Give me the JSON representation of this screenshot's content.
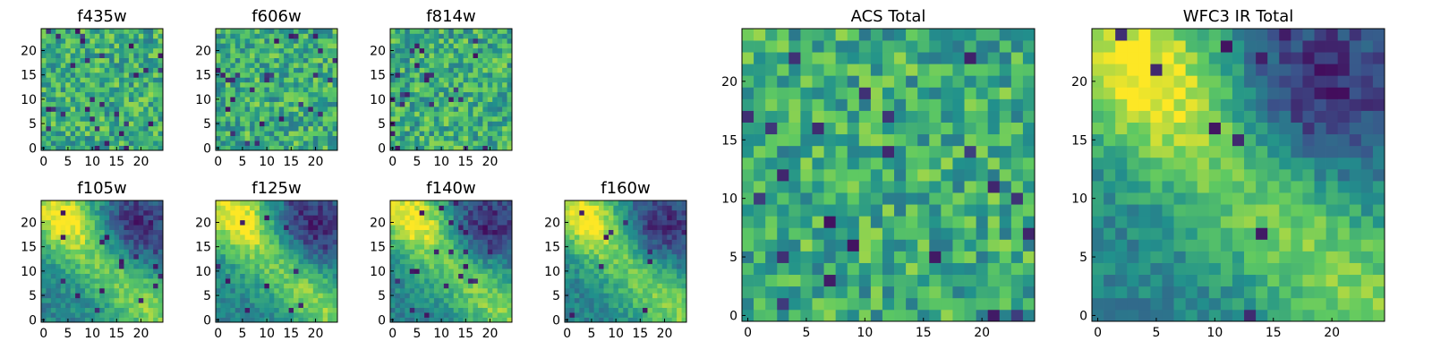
{
  "chart_data": [
    {
      "type": "heatmap",
      "title": "f435w",
      "xticks": [
        0,
        5,
        10,
        15,
        20
      ],
      "yticks": [
        0,
        5,
        10,
        15,
        20
      ],
      "grid_size": 25,
      "pattern": "noise",
      "seed": 11
    },
    {
      "type": "heatmap",
      "title": "f606w",
      "xticks": [
        0,
        5,
        10,
        15,
        20
      ],
      "yticks": [
        0,
        5,
        10,
        15,
        20
      ],
      "grid_size": 25,
      "pattern": "noise",
      "seed": 23
    },
    {
      "type": "heatmap",
      "title": "f814w",
      "xticks": [
        0,
        5,
        10,
        15,
        20
      ],
      "yticks": [
        0,
        5,
        10,
        15,
        20
      ],
      "grid_size": 25,
      "pattern": "noise",
      "seed": 37
    },
    {
      "type": "heatmap",
      "title": "f105w",
      "xticks": [
        0,
        5,
        10,
        15,
        20
      ],
      "yticks": [
        0,
        5,
        10,
        15,
        20
      ],
      "grid_size": 25,
      "pattern": "diagonal-band",
      "seed": 41
    },
    {
      "type": "heatmap",
      "title": "f125w",
      "xticks": [
        0,
        5,
        10,
        15,
        20
      ],
      "yticks": [
        0,
        5,
        10,
        15,
        20
      ],
      "grid_size": 25,
      "pattern": "diagonal-band",
      "seed": 53
    },
    {
      "type": "heatmap",
      "title": "f140w",
      "xticks": [
        0,
        5,
        10,
        15,
        20
      ],
      "yticks": [
        0,
        5,
        10,
        15,
        20
      ],
      "grid_size": 25,
      "pattern": "diagonal-band",
      "seed": 67
    },
    {
      "type": "heatmap",
      "title": "f160w",
      "xticks": [
        0,
        5,
        10,
        15,
        20
      ],
      "yticks": [
        0,
        5,
        10,
        15,
        20
      ],
      "grid_size": 25,
      "pattern": "diagonal-band",
      "seed": 79
    },
    {
      "type": "heatmap",
      "title": "ACS Total",
      "xticks": [
        0,
        5,
        10,
        15,
        20
      ],
      "yticks": [
        0,
        5,
        10,
        15,
        20
      ],
      "grid_size": 25,
      "pattern": "noise",
      "seed": 83
    },
    {
      "type": "heatmap",
      "title": "WFC3 IR Total",
      "xticks": [
        0,
        5,
        10,
        15,
        20
      ],
      "yticks": [
        0,
        5,
        10,
        15,
        20
      ],
      "grid_size": 25,
      "pattern": "diagonal-band",
      "seed": 97
    }
  ],
  "colormap": [
    "#440154",
    "#3b528b",
    "#21918c",
    "#5ec962",
    "#fde725"
  ]
}
